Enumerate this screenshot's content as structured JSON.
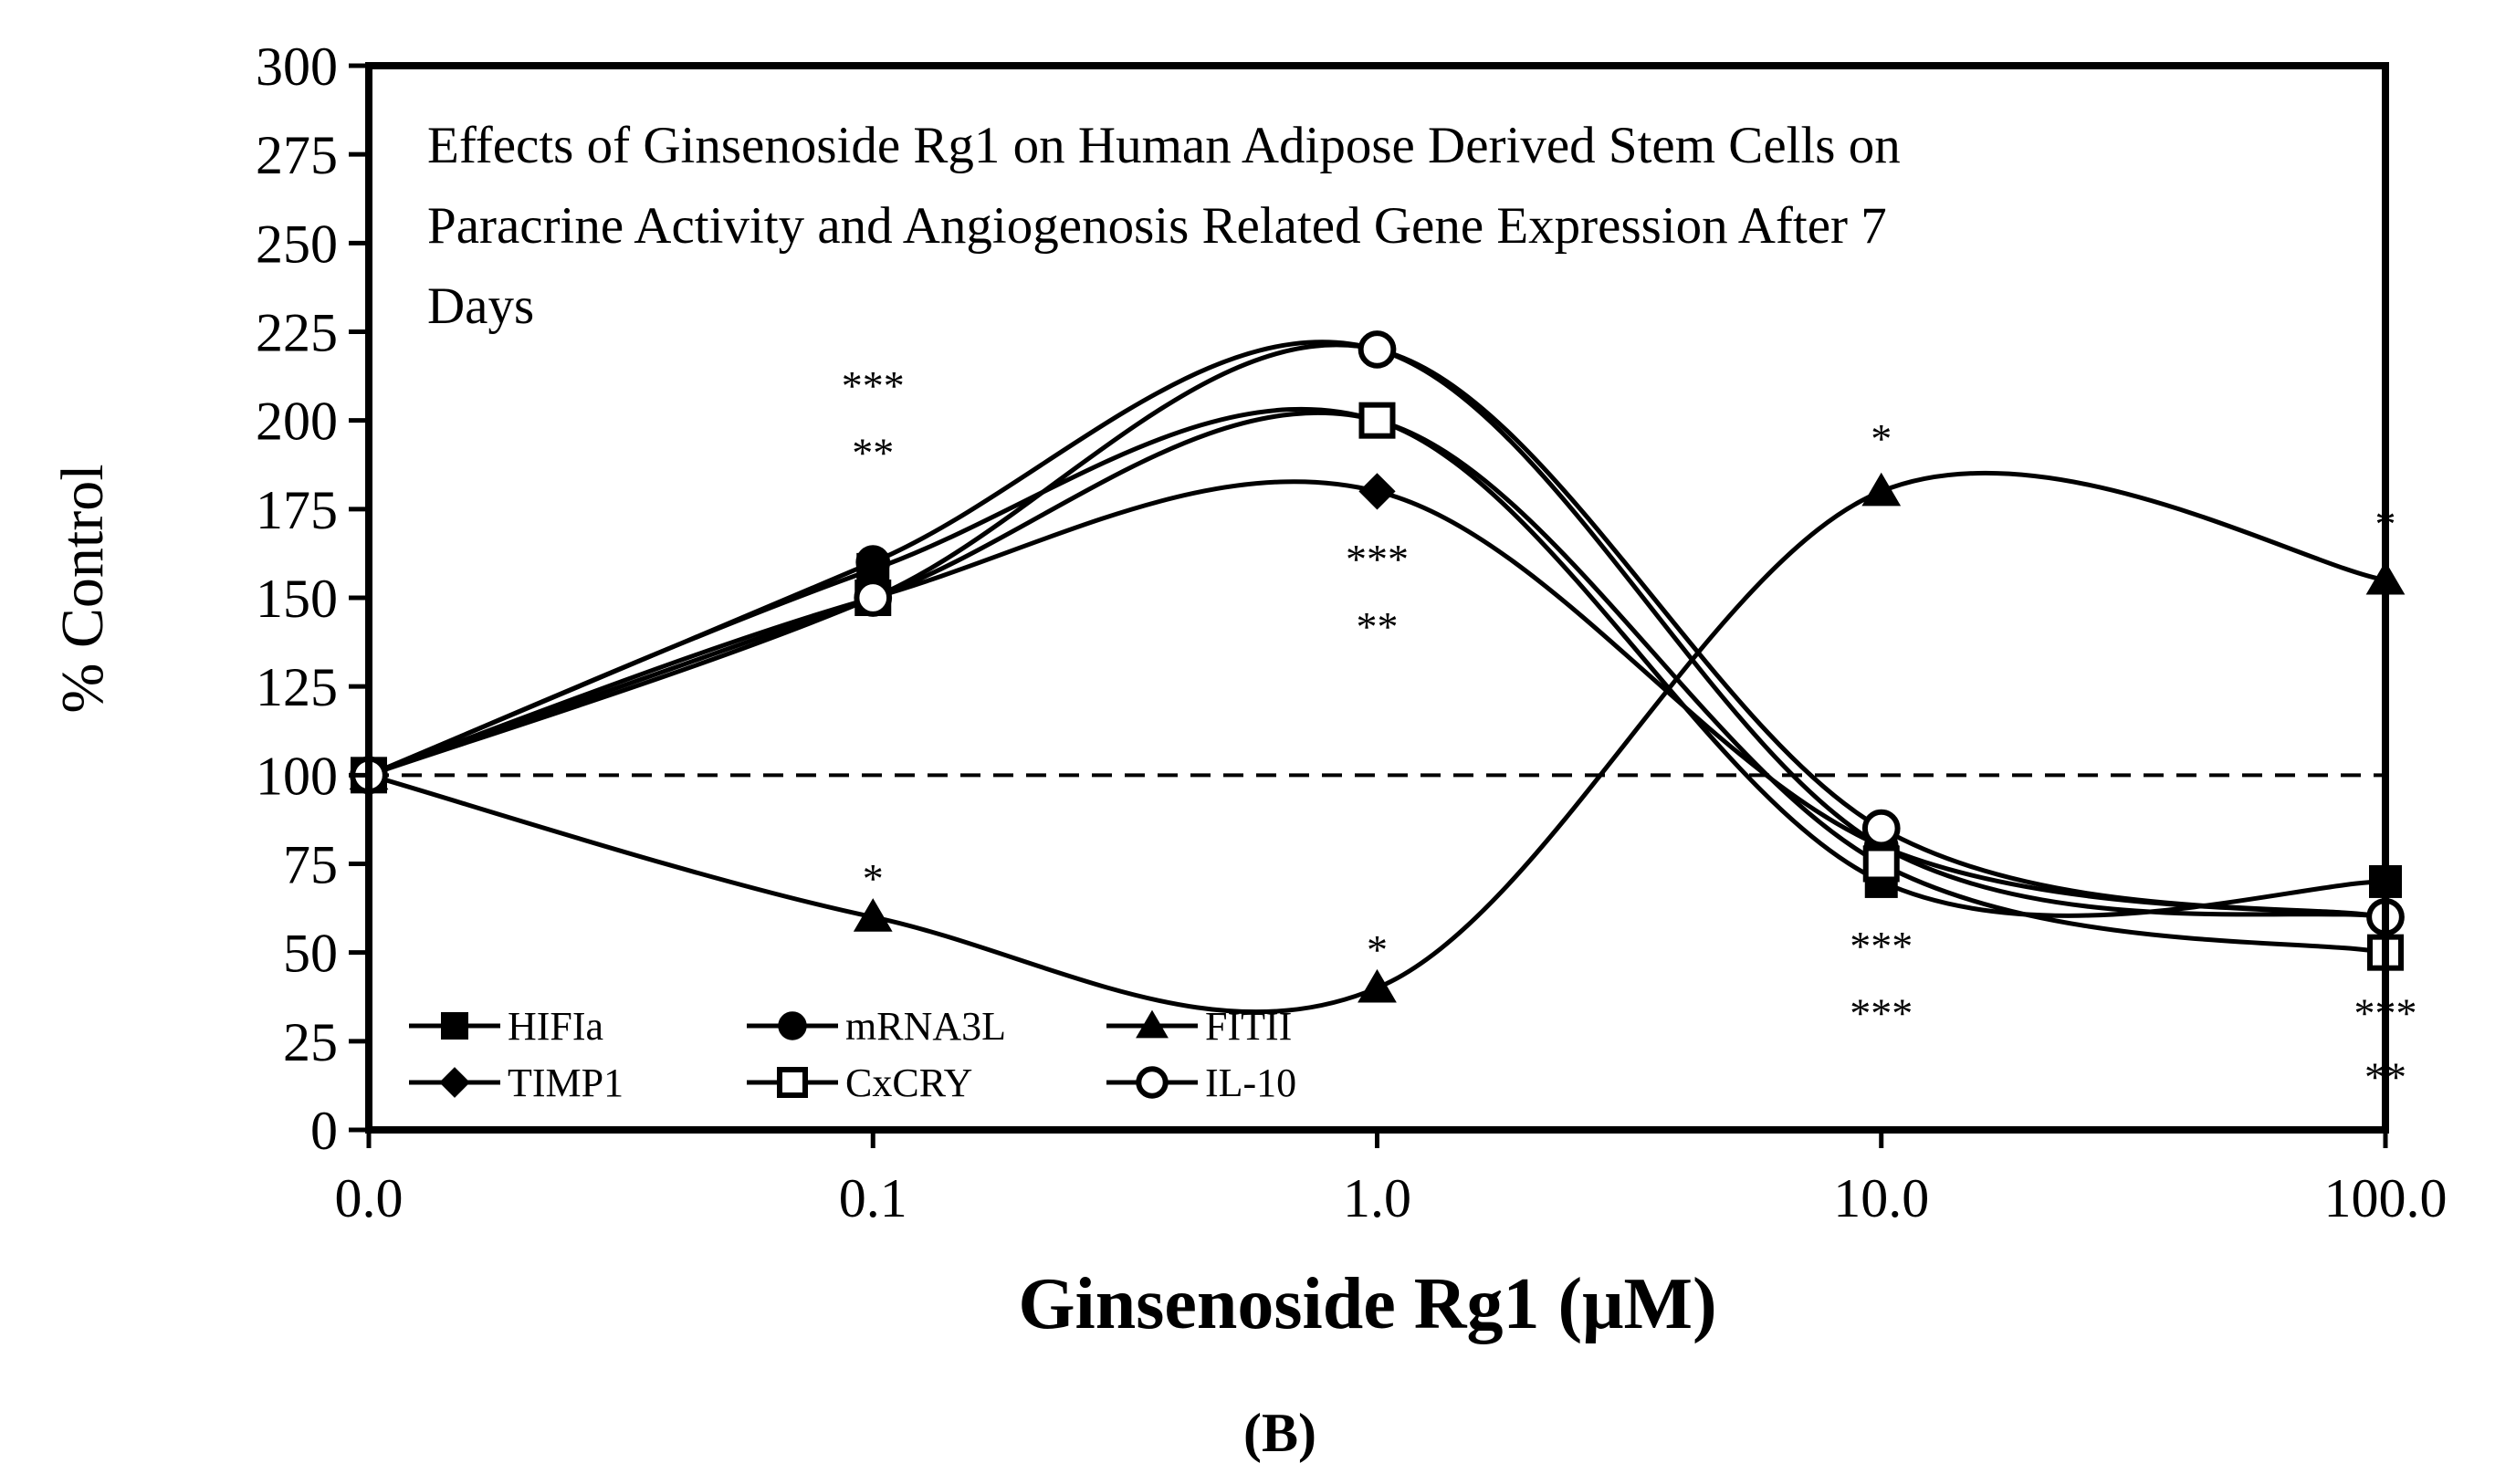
{
  "chart_data": {
    "type": "line",
    "title": "Effects of Ginsenoside Rg1 on Human Adipose Derived Stem Cells on Paracrine Activity and Angiogenosis Related Gene Expression After 7 Days",
    "title_lines": [
      "Effects of Ginsenoside Rg1 on Human Adipose Derived Stem Cells on",
      "Paracrine Activity and Angiogenosis Related Gene Expression After 7",
      "Days"
    ],
    "xlabel": "Ginsenoside Rg1 (μM)",
    "ylabel": "% Control",
    "panel_label": "(B)",
    "x_categories": [
      "0.0",
      "0.1",
      "1.0",
      "10.0",
      "100.0"
    ],
    "ylim": [
      0,
      300
    ],
    "y_ticks": [
      "0",
      "25",
      "50",
      "75",
      "100",
      "125",
      "150",
      "175",
      "200",
      "225",
      "250",
      "275",
      "300"
    ],
    "reference_line": 100,
    "legend_position": "bottom-left",
    "series": [
      {
        "name": "HIFIa",
        "marker": "square-filled",
        "values": [
          100,
          158,
          200,
          70,
          70
        ]
      },
      {
        "name": "mRNA3L",
        "marker": "circle-filled",
        "values": [
          100,
          160,
          220,
          80,
          60
        ]
      },
      {
        "name": "FITII",
        "marker": "triangle-filled",
        "values": [
          100,
          60,
          40,
          180,
          155
        ]
      },
      {
        "name": "TIMP1",
        "marker": "diamond-filled",
        "values": [
          100,
          150,
          180,
          80,
          60
        ]
      },
      {
        "name": "CxCRY",
        "marker": "square-open",
        "values": [
          100,
          150,
          200,
          75,
          50
        ]
      },
      {
        "name": "IL-10",
        "marker": "circle-open",
        "values": [
          100,
          150,
          220,
          85,
          60
        ]
      }
    ],
    "annotations": [
      {
        "x_index": 1,
        "y": 210,
        "text": "***"
      },
      {
        "x_index": 1,
        "y": 191,
        "text": "**"
      },
      {
        "x_index": 1,
        "y": 71,
        "text": "*"
      },
      {
        "x_index": 2,
        "y": 161,
        "text": "***"
      },
      {
        "x_index": 2,
        "y": 142,
        "text": "**"
      },
      {
        "x_index": 2,
        "y": 51,
        "text": "*"
      },
      {
        "x_index": 3,
        "y": 195,
        "text": "*"
      },
      {
        "x_index": 3,
        "y": 52,
        "text": "***"
      },
      {
        "x_index": 3,
        "y": 33,
        "text": "***"
      },
      {
        "x_index": 4,
        "y": 171,
        "text": "*"
      },
      {
        "x_index": 4,
        "y": 33,
        "text": "***"
      },
      {
        "x_index": 4,
        "y": 15,
        "text": "**"
      }
    ]
  }
}
